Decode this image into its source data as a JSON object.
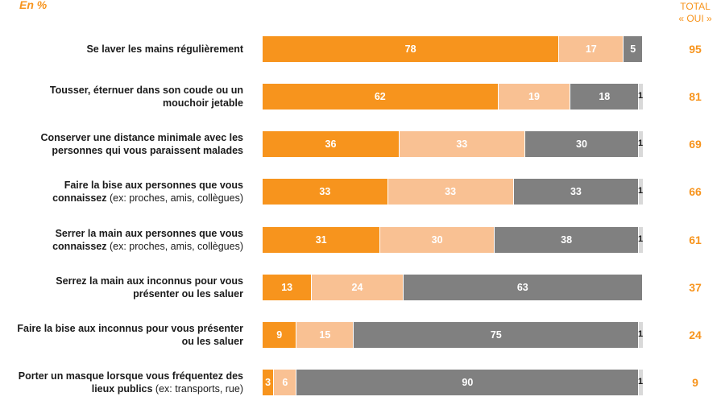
{
  "header": {
    "unit": "En %",
    "total_line1": "TOTAL",
    "total_line2": "« OUI »"
  },
  "colors": {
    "oui_tout_a_fait": "#F7941D",
    "oui_plutot": "#F9C193",
    "non": "#808080",
    "nsp": "#d9d9d9",
    "total": "#F7941D"
  },
  "chart_data": {
    "type": "bar",
    "orientation": "horizontal",
    "stacked": true,
    "unit": "%",
    "categories": [
      "Se laver les mains régulièrement",
      "Tousser, éternuer dans son coude ou un mouchoir jetable",
      "Conserver une distance minimale avec les personnes qui vous paraissent malades",
      "Faire la bise aux personnes que vous connaissez (ex: proches, amis, collègues)",
      "Serrer la main aux personnes que vous connaissez (ex: proches, amis, collègues)",
      "Serrez la main aux inconnus pour vous présenter ou les saluer",
      "Faire la bise aux inconnus pour vous présenter ou les saluer",
      "Porter un masque lorsque vous fréquentez des lieux publics (ex: transports, rue)"
    ],
    "labels": [
      {
        "main": "Se laver les mains régulièrement",
        "note": ""
      },
      {
        "main": "Tousser, éternuer dans son coude ou un mouchoir jetable",
        "note": ""
      },
      {
        "main": "Conserver une distance minimale avec les personnes qui vous paraissent malades",
        "note": ""
      },
      {
        "main": "Faire la bise aux personnes que vous connaissez",
        "note": " (ex: proches, amis, collègues)"
      },
      {
        "main": "Serrer la main aux personnes que vous connaissez",
        "note": " (ex: proches, amis, collègues)"
      },
      {
        "main": "Serrez la main aux inconnus pour vous présenter ou les saluer",
        "note": ""
      },
      {
        "main": "Faire la bise aux inconnus pour vous présenter ou les saluer",
        "note": ""
      },
      {
        "main": "Porter un masque lorsque vous fréquentez des lieux publics",
        "note": " (ex: transports, rue)"
      }
    ],
    "series": [
      {
        "name": "oui_tout_a_fait",
        "values": [
          78,
          62,
          36,
          33,
          31,
          13,
          9,
          3
        ]
      },
      {
        "name": "oui_plutot",
        "values": [
          17,
          19,
          33,
          33,
          30,
          24,
          15,
          6
        ]
      },
      {
        "name": "non",
        "values": [
          5,
          18,
          30,
          33,
          38,
          63,
          75,
          90
        ]
      },
      {
        "name": "nsp",
        "values": [
          0,
          1,
          1,
          1,
          1,
          0,
          1,
          1
        ]
      }
    ],
    "totals_oui": [
      95,
      81,
      69,
      66,
      61,
      37,
      24,
      9
    ],
    "xlim": [
      0,
      100
    ]
  }
}
